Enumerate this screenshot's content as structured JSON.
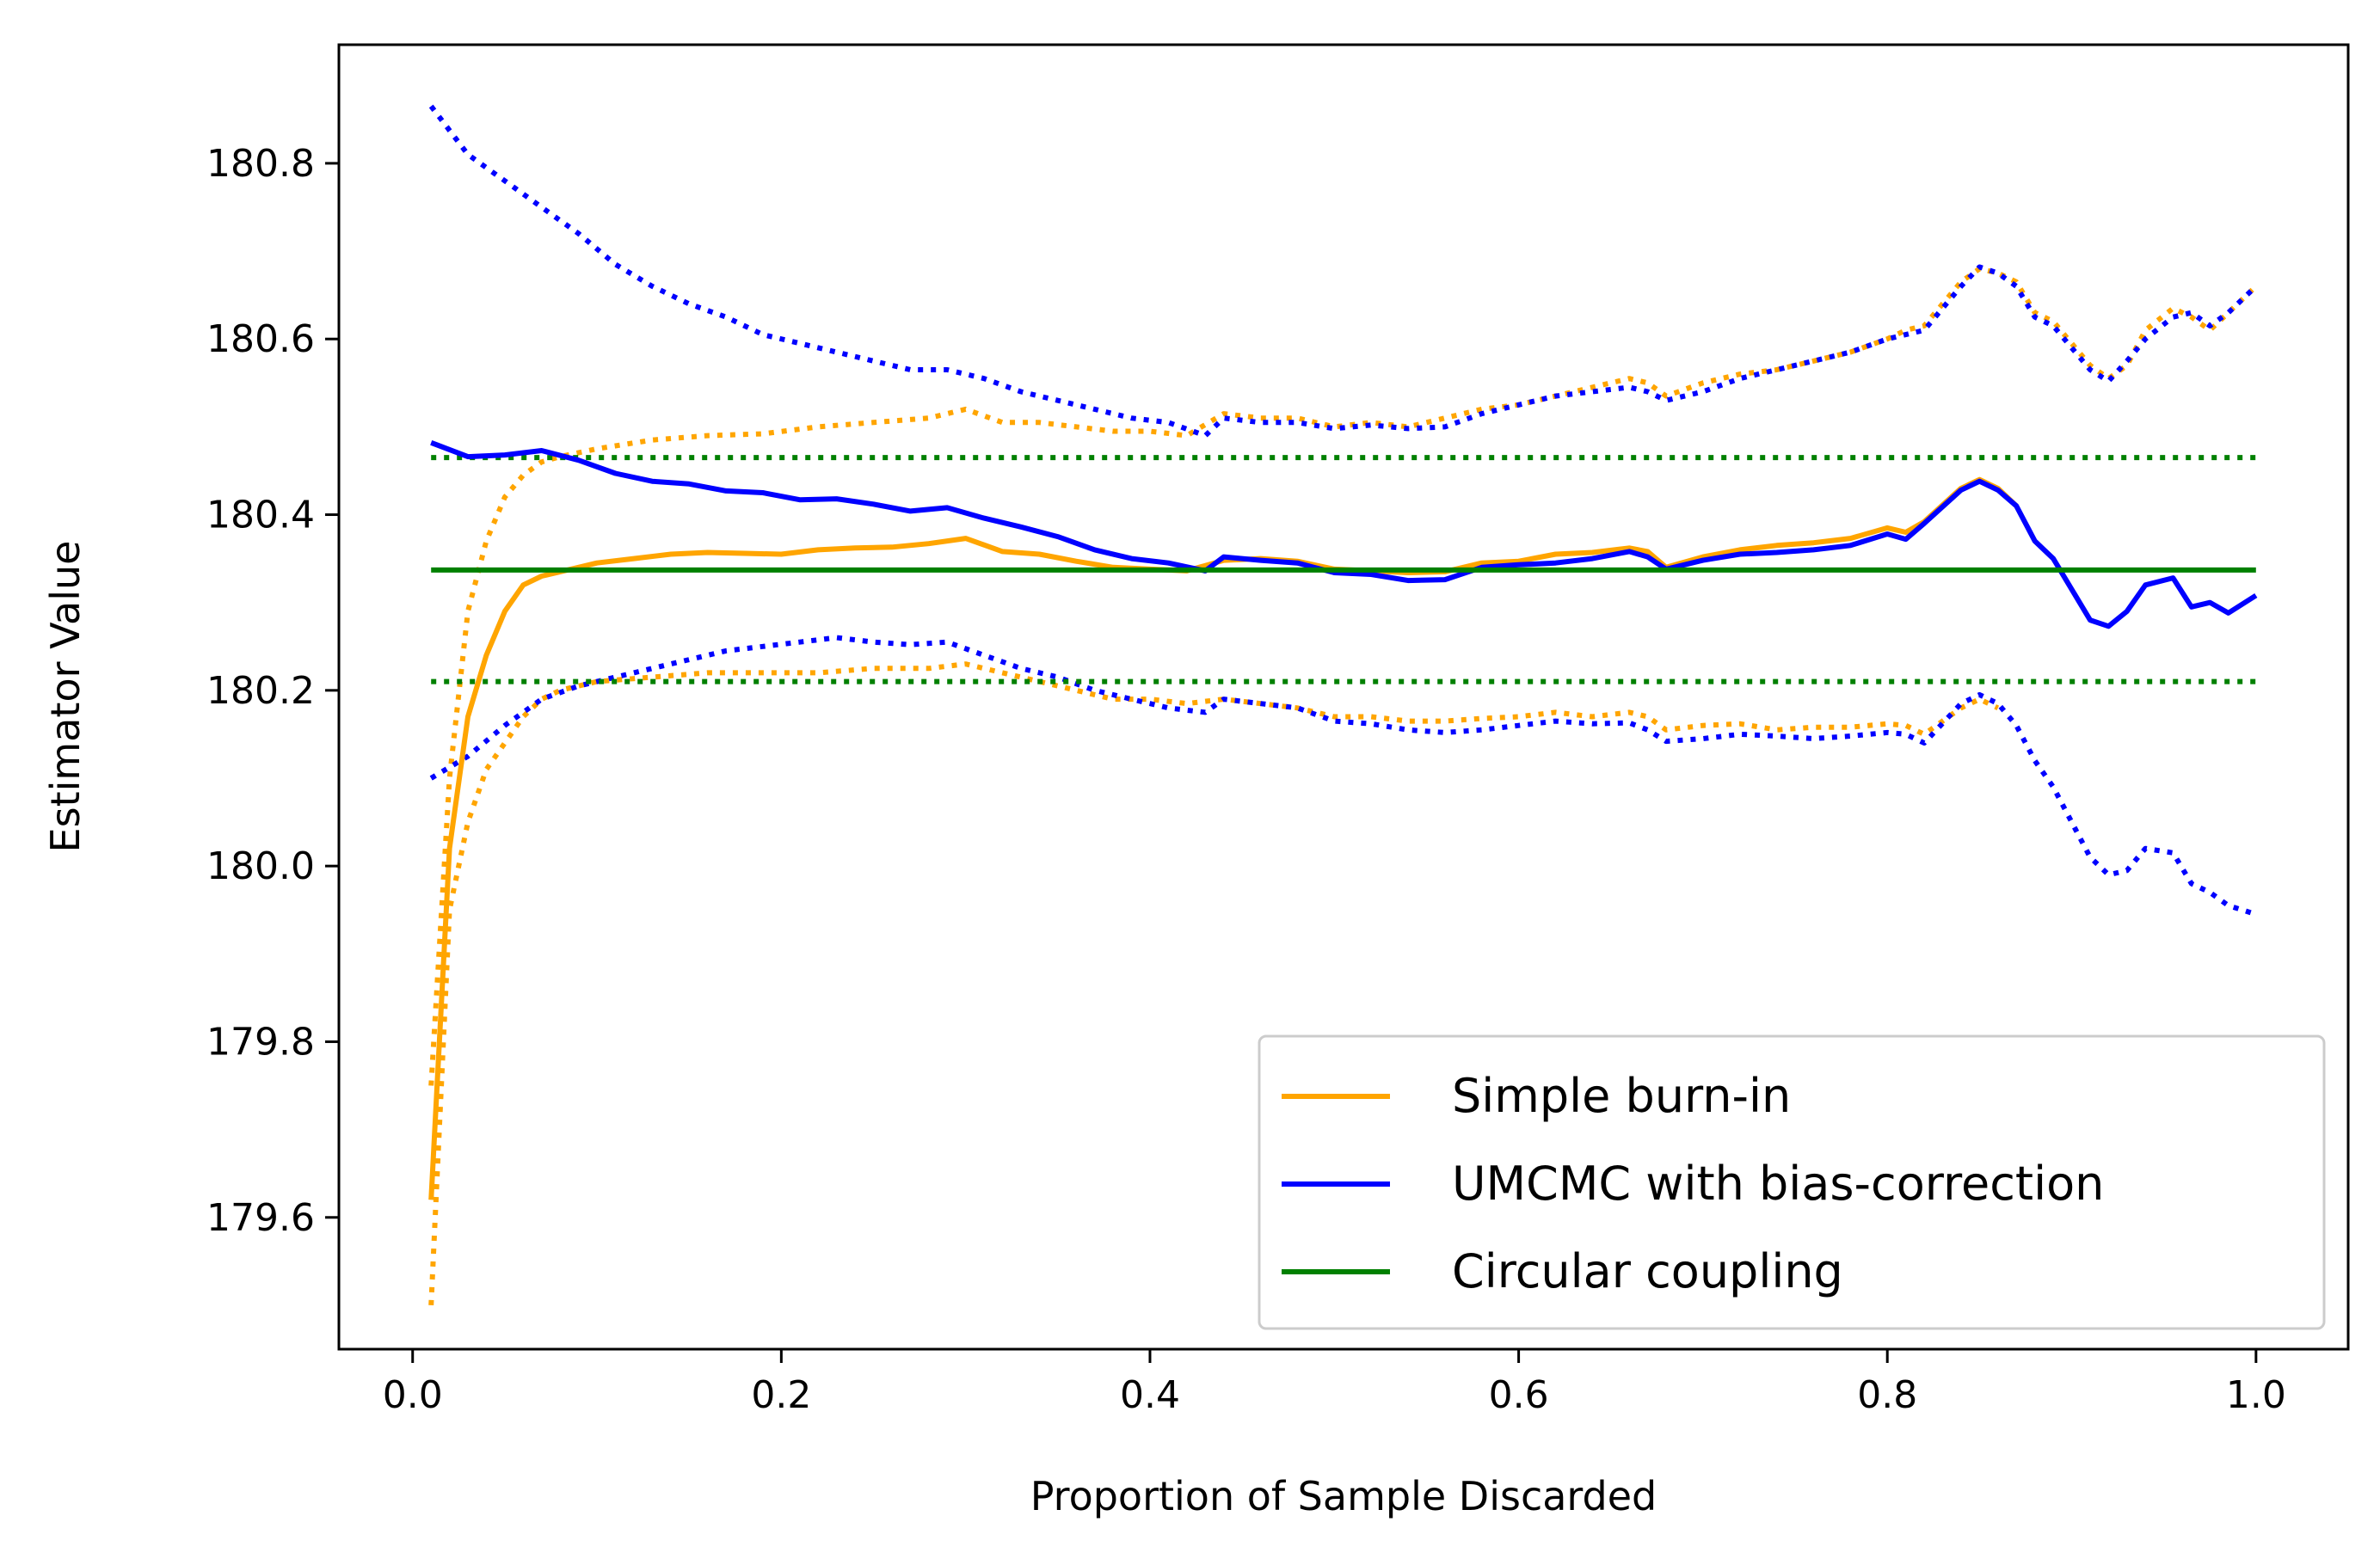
{
  "chart_data": {
    "type": "line",
    "title": "",
    "xlabel": "Proportion of Sample Discarded",
    "ylabel": "Estimator Value",
    "xlim": [
      -0.04,
      1.05
    ],
    "ylim": [
      179.45,
      180.935
    ],
    "xticks": [
      0.0,
      0.2,
      0.4,
      0.6,
      0.8,
      1.0
    ],
    "xtick_labels": [
      "0.0",
      "0.2",
      "0.4",
      "0.6",
      "0.8",
      "1.0"
    ],
    "yticks": [
      179.6,
      179.8,
      180.0,
      180.2,
      180.4,
      180.6,
      180.8
    ],
    "ytick_labels": [
      "179.6",
      "179.8",
      "180.0",
      "180.2",
      "180.4",
      "180.6",
      "180.8"
    ],
    "grid": false,
    "legend_position": "lower-right",
    "series": [
      {
        "name": "Simple burn-in",
        "color": "#FFA500",
        "style": "solid",
        "x": [
          0.01,
          0.02,
          0.03,
          0.04,
          0.05,
          0.06,
          0.07,
          0.08,
          0.09,
          0.1,
          0.12,
          0.14,
          0.16,
          0.18,
          0.2,
          0.22,
          0.24,
          0.26,
          0.28,
          0.3,
          0.32,
          0.34,
          0.36,
          0.38,
          0.4,
          0.42,
          0.44,
          0.46,
          0.48,
          0.5,
          0.52,
          0.54,
          0.56,
          0.58,
          0.6,
          0.62,
          0.64,
          0.66,
          0.67,
          0.68,
          0.7,
          0.72,
          0.74,
          0.76,
          0.78,
          0.8,
          0.81,
          0.82,
          0.84,
          0.85,
          0.86,
          0.87
        ],
        "y": [
          179.62,
          180.02,
          180.17,
          180.24,
          180.29,
          180.32,
          180.33,
          180.335,
          180.34,
          180.345,
          180.35,
          180.355,
          180.357,
          180.356,
          180.355,
          180.36,
          180.362,
          180.363,
          180.367,
          180.373,
          180.358,
          180.355,
          180.347,
          180.34,
          180.338,
          180.336,
          180.348,
          180.35,
          180.347,
          180.338,
          180.336,
          180.334,
          180.335,
          180.345,
          180.347,
          180.355,
          180.357,
          180.362,
          180.358,
          180.34,
          180.352,
          180.36,
          180.365,
          180.368,
          180.373,
          180.385,
          180.38,
          180.392,
          180.43,
          180.44,
          180.43,
          180.41
        ]
      },
      {
        "name": "UMCMC with bias-correction",
        "color": "#0000FF",
        "style": "solid",
        "x": [
          0.01,
          0.03,
          0.05,
          0.07,
          0.09,
          0.11,
          0.13,
          0.15,
          0.17,
          0.19,
          0.21,
          0.23,
          0.25,
          0.27,
          0.29,
          0.31,
          0.33,
          0.35,
          0.37,
          0.39,
          0.41,
          0.43,
          0.44,
          0.46,
          0.48,
          0.5,
          0.52,
          0.54,
          0.56,
          0.58,
          0.6,
          0.62,
          0.64,
          0.66,
          0.67,
          0.68,
          0.7,
          0.72,
          0.74,
          0.76,
          0.78,
          0.8,
          0.81,
          0.82,
          0.84,
          0.85,
          0.86,
          0.87,
          0.88,
          0.89,
          0.91,
          0.92,
          0.93,
          0.94,
          0.955,
          0.965,
          0.975,
          0.985,
          1.0
        ],
        "y": [
          180.482,
          180.466,
          180.468,
          180.473,
          180.462,
          180.447,
          180.438,
          180.435,
          180.427,
          180.425,
          180.417,
          180.418,
          180.412,
          180.404,
          180.408,
          180.396,
          180.386,
          180.375,
          180.36,
          180.35,
          180.345,
          180.336,
          180.352,
          180.348,
          180.345,
          180.334,
          180.332,
          180.325,
          180.326,
          180.34,
          180.343,
          180.345,
          180.35,
          180.358,
          180.352,
          180.338,
          180.348,
          180.355,
          180.357,
          180.36,
          180.365,
          180.378,
          180.372,
          180.39,
          180.428,
          180.438,
          180.428,
          180.41,
          180.37,
          180.35,
          180.28,
          180.273,
          180.29,
          180.32,
          180.328,
          180.295,
          180.3,
          180.288,
          180.308
        ]
      },
      {
        "name": "Circular coupling",
        "color": "#008000",
        "style": "solid",
        "x": [
          0.01,
          1.0
        ],
        "y": [
          180.337,
          180.337
        ]
      },
      {
        "name": "",
        "color": "#FFA500",
        "style": "dotted",
        "x": [
          0.01,
          0.02,
          0.03,
          0.04,
          0.05,
          0.06,
          0.07,
          0.08,
          0.1,
          0.13,
          0.16,
          0.19,
          0.22,
          0.25,
          0.28,
          0.3,
          0.32,
          0.34,
          0.36,
          0.38,
          0.4,
          0.42,
          0.44,
          0.46,
          0.48,
          0.5,
          0.52,
          0.54,
          0.56,
          0.58,
          0.6,
          0.62,
          0.64,
          0.66,
          0.67,
          0.68,
          0.7,
          0.72,
          0.74,
          0.76,
          0.78,
          0.8,
          0.81,
          0.82,
          0.84,
          0.85,
          0.86,
          0.87,
          0.88,
          0.89,
          0.91,
          0.92,
          0.93,
          0.94,
          0.955,
          0.965,
          0.975,
          0.985,
          1.0
        ],
        "y": [
          179.75,
          180.1,
          180.29,
          180.37,
          180.42,
          180.445,
          180.46,
          180.466,
          180.475,
          180.485,
          180.49,
          180.492,
          180.5,
          180.505,
          180.51,
          180.52,
          180.505,
          180.505,
          180.5,
          180.495,
          180.495,
          180.49,
          180.515,
          180.51,
          180.51,
          180.5,
          180.505,
          180.5,
          180.51,
          180.52,
          180.525,
          180.535,
          180.545,
          180.555,
          180.55,
          180.535,
          180.55,
          180.56,
          180.565,
          180.575,
          180.585,
          180.6,
          180.61,
          180.615,
          180.665,
          180.68,
          180.675,
          180.665,
          180.63,
          180.62,
          180.57,
          180.555,
          180.57,
          180.61,
          180.635,
          180.625,
          180.61,
          180.63,
          180.66
        ]
      },
      {
        "name": "",
        "color": "#FFA500",
        "style": "dotted",
        "x": [
          0.01,
          0.02,
          0.03,
          0.04,
          0.05,
          0.06,
          0.07,
          0.08,
          0.1,
          0.13,
          0.16,
          0.19,
          0.22,
          0.25,
          0.28,
          0.3,
          0.32,
          0.34,
          0.36,
          0.38,
          0.4,
          0.42,
          0.44,
          0.46,
          0.48,
          0.5,
          0.52,
          0.54,
          0.56,
          0.58,
          0.6,
          0.62,
          0.64,
          0.66,
          0.67,
          0.68,
          0.7,
          0.72,
          0.74,
          0.76,
          0.78,
          0.8,
          0.81,
          0.82,
          0.84,
          0.85,
          0.86
        ],
        "y": [
          179.5,
          179.95,
          180.05,
          180.11,
          180.14,
          180.17,
          180.19,
          180.2,
          180.21,
          180.215,
          180.22,
          180.22,
          180.22,
          180.225,
          180.225,
          180.23,
          180.22,
          180.21,
          180.2,
          180.19,
          180.19,
          180.185,
          180.19,
          180.185,
          180.18,
          180.17,
          180.17,
          180.165,
          180.165,
          180.168,
          180.17,
          180.175,
          180.17,
          180.175,
          180.17,
          180.155,
          180.16,
          180.162,
          180.155,
          180.158,
          180.158,
          180.162,
          180.16,
          180.15,
          180.18,
          180.19,
          180.18
        ]
      },
      {
        "name": "",
        "color": "#0000FF",
        "style": "dotted",
        "x": [
          0.01,
          0.03,
          0.05,
          0.07,
          0.09,
          0.11,
          0.13,
          0.15,
          0.17,
          0.19,
          0.21,
          0.23,
          0.25,
          0.27,
          0.29,
          0.31,
          0.33,
          0.35,
          0.37,
          0.39,
          0.41,
          0.43,
          0.44,
          0.46,
          0.48,
          0.5,
          0.52,
          0.54,
          0.56,
          0.58,
          0.6,
          0.62,
          0.64,
          0.66,
          0.67,
          0.68,
          0.7,
          0.72,
          0.74,
          0.76,
          0.78,
          0.8,
          0.81,
          0.82,
          0.84,
          0.85,
          0.86,
          0.87,
          0.88,
          0.89,
          0.91,
          0.92,
          0.93,
          0.94,
          0.955,
          0.965,
          0.975,
          0.985,
          1.0
        ],
        "y": [
          180.865,
          180.81,
          180.78,
          180.75,
          180.72,
          180.685,
          180.66,
          180.64,
          180.625,
          180.605,
          180.595,
          180.585,
          180.575,
          180.565,
          180.565,
          180.555,
          180.54,
          180.53,
          180.52,
          180.51,
          180.505,
          180.49,
          180.51,
          180.505,
          180.505,
          180.498,
          180.502,
          180.498,
          180.5,
          180.515,
          180.525,
          180.535,
          180.54,
          180.545,
          180.54,
          180.53,
          180.54,
          180.555,
          180.565,
          180.575,
          180.585,
          180.6,
          180.605,
          180.61,
          180.66,
          180.682,
          180.675,
          180.66,
          180.625,
          180.615,
          180.565,
          180.552,
          180.575,
          180.6,
          180.625,
          180.63,
          180.615,
          180.63,
          180.66
        ]
      },
      {
        "name": "",
        "color": "#0000FF",
        "style": "dotted",
        "x": [
          0.01,
          0.03,
          0.05,
          0.07,
          0.09,
          0.11,
          0.13,
          0.15,
          0.17,
          0.19,
          0.21,
          0.23,
          0.25,
          0.27,
          0.29,
          0.31,
          0.33,
          0.35,
          0.37,
          0.39,
          0.41,
          0.43,
          0.44,
          0.46,
          0.48,
          0.5,
          0.52,
          0.54,
          0.56,
          0.58,
          0.6,
          0.62,
          0.64,
          0.66,
          0.67,
          0.68,
          0.7,
          0.72,
          0.74,
          0.76,
          0.78,
          0.8,
          0.81,
          0.82,
          0.84,
          0.85,
          0.86,
          0.87,
          0.88,
          0.89,
          0.91,
          0.92,
          0.93,
          0.94,
          0.955,
          0.965,
          0.975,
          0.985,
          1.0
        ],
        "y": [
          180.1,
          180.125,
          180.16,
          180.19,
          180.205,
          180.215,
          180.225,
          180.235,
          180.245,
          180.25,
          180.255,
          180.26,
          180.255,
          180.252,
          180.255,
          180.24,
          180.225,
          180.215,
          180.2,
          180.19,
          180.18,
          180.175,
          180.19,
          180.185,
          180.18,
          180.165,
          180.162,
          180.155,
          180.152,
          180.155,
          180.16,
          180.165,
          180.162,
          180.163,
          180.155,
          180.142,
          180.145,
          180.15,
          180.148,
          180.145,
          180.148,
          180.152,
          180.15,
          180.14,
          180.185,
          180.195,
          180.185,
          180.16,
          180.12,
          180.09,
          180.01,
          179.99,
          179.995,
          180.02,
          180.015,
          179.98,
          179.97,
          179.955,
          179.945
        ]
      },
      {
        "name": "",
        "color": "#008000",
        "style": "dotted",
        "x": [
          0.01,
          1.0
        ],
        "y": [
          180.465,
          180.465
        ]
      },
      {
        "name": "",
        "color": "#008000",
        "style": "dotted",
        "x": [
          0.01,
          1.0
        ],
        "y": [
          180.21,
          180.21
        ]
      }
    ]
  }
}
